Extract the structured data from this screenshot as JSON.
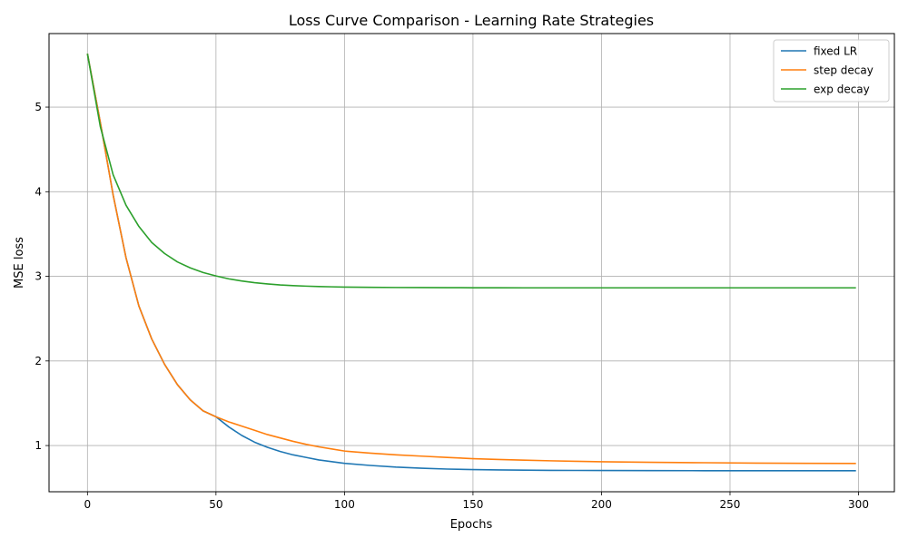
{
  "chart_data": {
    "type": "line",
    "title": "Loss Curve Comparison - Learning Rate Strategies",
    "xlabel": "Epochs",
    "ylabel": "MSE loss",
    "xlim": [
      -14.95,
      313.95
    ],
    "ylim": [
      0.454,
      5.869
    ],
    "xticks": [
      0,
      50,
      100,
      150,
      200,
      250,
      300
    ],
    "yticks": [
      1,
      2,
      3,
      4,
      5
    ],
    "grid": true,
    "legend_position": "top-right",
    "series": [
      {
        "name": "fixed LR",
        "color": "#1f77b4",
        "x": [
          0,
          5,
          10,
          15,
          20,
          25,
          30,
          35,
          40,
          45,
          50,
          55,
          60,
          65,
          70,
          75,
          80,
          85,
          90,
          95,
          100,
          110,
          120,
          130,
          140,
          150,
          160,
          170,
          180,
          190,
          200,
          220,
          240,
          260,
          280,
          299
        ],
        "y": [
          5.63,
          4.82,
          3.96,
          3.22,
          2.65,
          2.26,
          1.96,
          1.72,
          1.54,
          1.41,
          1.34,
          1.22,
          1.12,
          1.04,
          0.98,
          0.93,
          0.89,
          0.86,
          0.83,
          0.81,
          0.79,
          0.765,
          0.745,
          0.732,
          0.722,
          0.716,
          0.712,
          0.709,
          0.707,
          0.706,
          0.705,
          0.704,
          0.703,
          0.703,
          0.703,
          0.703
        ]
      },
      {
        "name": "step decay",
        "color": "#ff7f0e",
        "x": [
          0,
          5,
          10,
          15,
          20,
          25,
          30,
          35,
          40,
          45,
          50,
          55,
          60,
          65,
          70,
          75,
          80,
          85,
          90,
          95,
          100,
          110,
          120,
          130,
          140,
          150,
          160,
          170,
          180,
          190,
          200,
          220,
          240,
          260,
          280,
          299
        ],
        "y": [
          5.63,
          4.82,
          3.96,
          3.22,
          2.65,
          2.26,
          1.96,
          1.72,
          1.54,
          1.41,
          1.34,
          1.28,
          1.23,
          1.18,
          1.13,
          1.09,
          1.05,
          1.015,
          0.985,
          0.96,
          0.935,
          0.91,
          0.89,
          0.875,
          0.86,
          0.845,
          0.835,
          0.827,
          0.82,
          0.814,
          0.809,
          0.802,
          0.797,
          0.793,
          0.79,
          0.788
        ]
      },
      {
        "name": "exp decay",
        "color": "#2ca02c",
        "x": [
          0,
          5,
          10,
          15,
          20,
          25,
          30,
          35,
          40,
          45,
          50,
          55,
          60,
          65,
          70,
          75,
          80,
          85,
          90,
          95,
          100,
          110,
          120,
          130,
          140,
          150,
          160,
          170,
          180,
          190,
          200,
          220,
          240,
          260,
          280,
          299
        ],
        "y": [
          5.63,
          4.77,
          4.2,
          3.84,
          3.59,
          3.4,
          3.27,
          3.17,
          3.1,
          3.045,
          3.005,
          2.97,
          2.945,
          2.925,
          2.91,
          2.898,
          2.89,
          2.884,
          2.879,
          2.876,
          2.873,
          2.87,
          2.868,
          2.867,
          2.866,
          2.865,
          2.865,
          2.864,
          2.864,
          2.864,
          2.864,
          2.864,
          2.864,
          2.864,
          2.864,
          2.864
        ]
      }
    ]
  }
}
